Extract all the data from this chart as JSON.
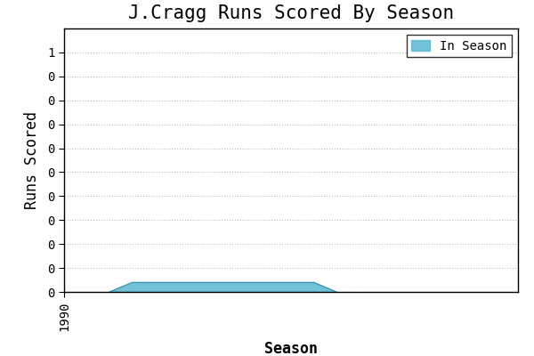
{
  "title": "J.Cragg Runs Scored By Season",
  "xlabel": "Season",
  "ylabel": "Runs Scored",
  "legend_label": "In Season",
  "fill_color": "#5bb8d4",
  "fill_alpha": 0.85,
  "line_color": "#3a90aa",
  "background_color": "#ffffff",
  "grid_color": "#bbbbbb",
  "x_data": [
    1992,
    1993,
    1994,
    1995,
    1996,
    1997,
    1998,
    1999,
    2000,
    2001,
    2002
  ],
  "y_data": [
    0.0,
    0.04,
    0.04,
    0.04,
    0.04,
    0.04,
    0.04,
    0.04,
    0.04,
    0.04,
    0.0
  ],
  "xlim": [
    1990,
    2010
  ],
  "ylim": [
    0,
    1.1
  ],
  "yticks": [
    0.0,
    0.1,
    0.2,
    0.3,
    0.4,
    0.5,
    0.6,
    0.7,
    0.8,
    0.9,
    1.0
  ],
  "title_fontsize": 15,
  "axis_label_fontsize": 12,
  "tick_fontsize": 10,
  "legend_fontsize": 10
}
